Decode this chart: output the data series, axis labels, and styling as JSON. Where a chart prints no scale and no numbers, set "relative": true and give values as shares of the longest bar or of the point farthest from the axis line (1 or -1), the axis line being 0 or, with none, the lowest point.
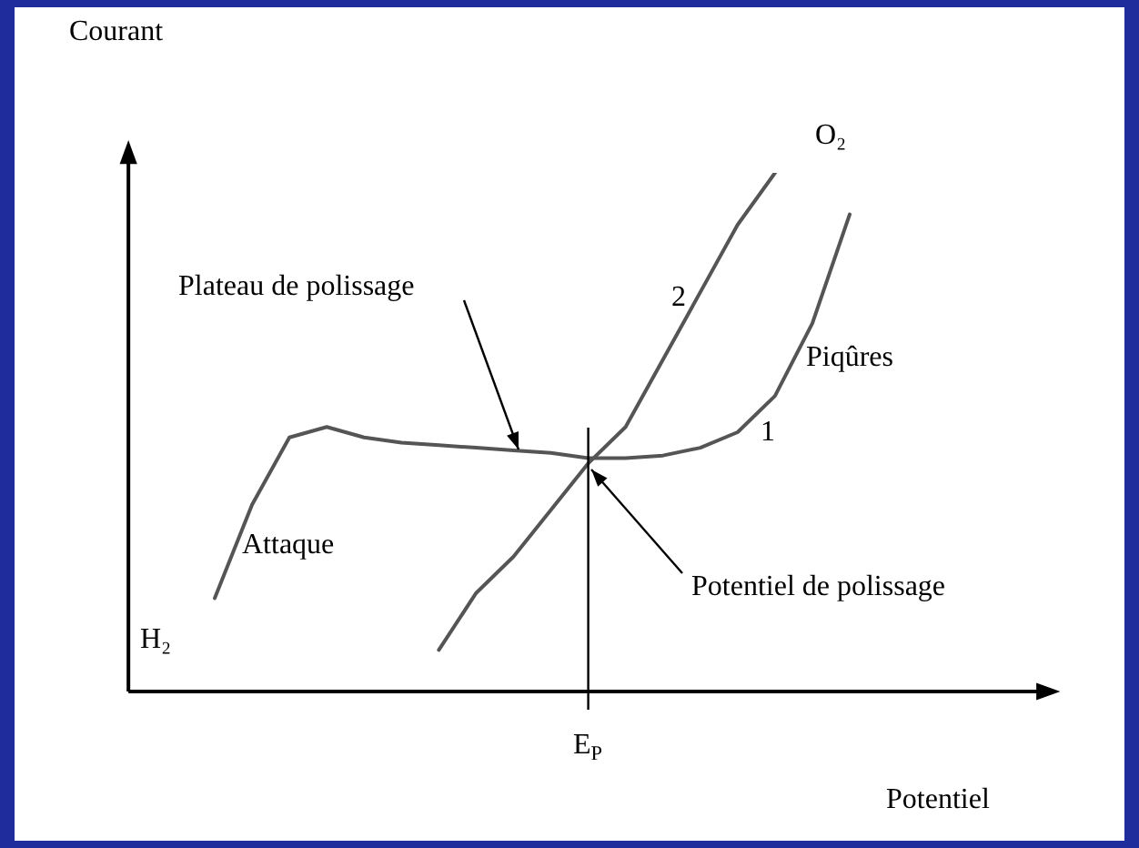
{
  "chart_data": {
    "type": "line",
    "relative": true,
    "ylabel": "Courant",
    "xlabel": "Potentiel",
    "tick_labels": false,
    "grid": false,
    "legend": false,
    "marker": "none",
    "line_style": "solid",
    "categories": [
      null,
      null,
      null,
      null,
      null,
      null,
      null,
      null,
      null,
      null,
      null,
      null,
      null,
      null,
      null,
      null,
      null,
      null
    ],
    "series": [
      {
        "name": "1",
        "color": "#555555",
        "values": [
          0.18,
          0.36,
          0.49,
          0.51,
          0.49,
          0.48,
          0.475,
          0.47,
          0.465,
          0.46,
          0.45,
          0.45,
          0.455,
          0.47,
          0.5,
          0.57,
          0.71,
          0.92
        ]
      },
      {
        "name": "2",
        "color": "#555555",
        "values": [
          null,
          null,
          null,
          null,
          null,
          null,
          0.08,
          0.19,
          0.26,
          0.35,
          0.44,
          0.51,
          0.64,
          0.77,
          0.9,
          1.0,
          null,
          null
        ]
      }
    ],
    "annotations": [
      "Plateau de polissage",
      "Potentiel de polissage",
      "Attaque",
      "Piqûres",
      "O₂",
      "H₂",
      "E$_{P}$"
    ]
  }
}
